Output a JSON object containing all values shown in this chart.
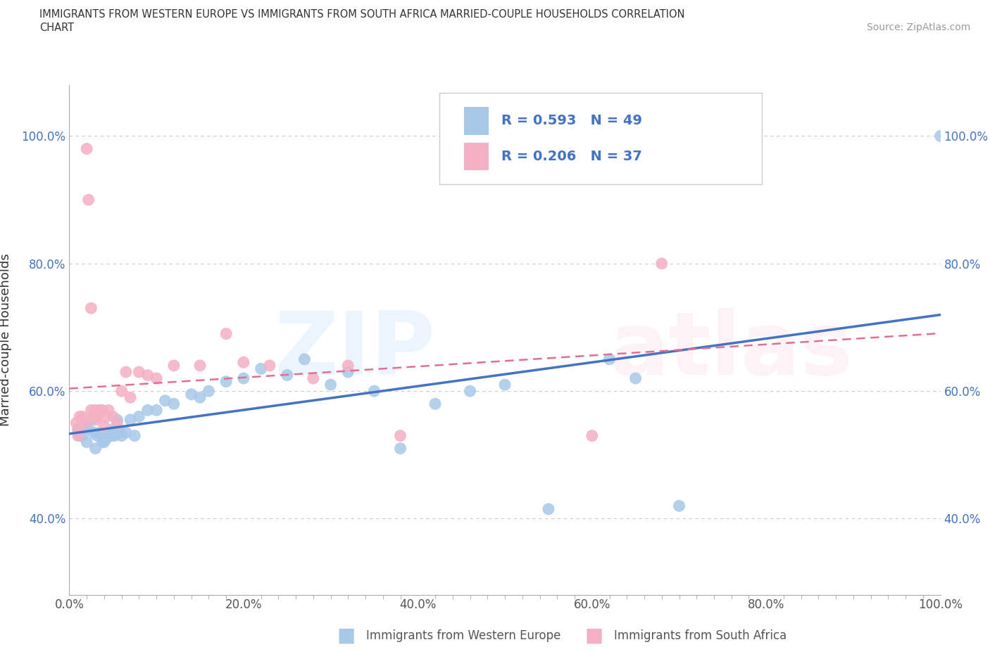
{
  "title_line1": "IMMIGRANTS FROM WESTERN EUROPE VS IMMIGRANTS FROM SOUTH AFRICA MARRIED-COUPLE HOUSEHOLDS CORRELATION",
  "title_line2": "CHART",
  "source_text": "Source: ZipAtlas.com",
  "ylabel": "Married-couple Households",
  "xmin": 0.0,
  "xmax": 1.0,
  "ymin": 0.28,
  "ymax": 1.08,
  "xtick_labels": [
    "0.0%",
    "",
    "",
    "",
    "",
    "",
    "",
    "",
    "",
    "",
    "20.0%",
    "",
    "",
    "",
    "",
    "",
    "",
    "",
    "",
    "",
    "40.0%",
    "",
    "",
    "",
    "",
    "",
    "",
    "",
    "",
    "",
    "60.0%",
    "",
    "",
    "",
    "",
    "",
    "",
    "",
    "",
    "",
    "80.0%",
    "",
    "",
    "",
    "",
    "",
    "",
    "",
    "",
    "",
    "100.0%"
  ],
  "xtick_vals": [
    0.0,
    0.02,
    0.04,
    0.06,
    0.08,
    0.1,
    0.12,
    0.14,
    0.16,
    0.18,
    0.2,
    0.22,
    0.24,
    0.26,
    0.28,
    0.3,
    0.32,
    0.34,
    0.36,
    0.38,
    0.4,
    0.42,
    0.44,
    0.46,
    0.48,
    0.5,
    0.52,
    0.54,
    0.56,
    0.58,
    0.6,
    0.62,
    0.64,
    0.66,
    0.68,
    0.7,
    0.72,
    0.74,
    0.76,
    0.78,
    0.8,
    0.82,
    0.84,
    0.86,
    0.88,
    0.9,
    0.92,
    0.94,
    0.96,
    0.98,
    1.0
  ],
  "xtick_major_labels": [
    "0.0%",
    "20.0%",
    "40.0%",
    "60.0%",
    "80.0%",
    "100.0%"
  ],
  "xtick_major_vals": [
    0.0,
    0.2,
    0.4,
    0.6,
    0.8,
    1.0
  ],
  "ytick_labels": [
    "40.0%",
    "60.0%",
    "80.0%",
    "100.0%"
  ],
  "ytick_vals": [
    0.4,
    0.6,
    0.8,
    1.0
  ],
  "series1_color": "#a8c8e8",
  "series2_color": "#f4b0c4",
  "series1_line_color": "#4472c4",
  "series2_line_color": "#e07090",
  "legend_label1": "Immigrants from Western Europe",
  "legend_label2": "Immigrants from South Africa",
  "R1": "0.593",
  "N1": "49",
  "R2": "0.206",
  "N2": "37",
  "blue_x": [
    0.01,
    0.012,
    0.015,
    0.018,
    0.02,
    0.022,
    0.025,
    0.028,
    0.03,
    0.032,
    0.035,
    0.038,
    0.04,
    0.042,
    0.045,
    0.048,
    0.05,
    0.052,
    0.055,
    0.058,
    0.06,
    0.065,
    0.07,
    0.075,
    0.08,
    0.09,
    0.1,
    0.11,
    0.12,
    0.14,
    0.15,
    0.16,
    0.18,
    0.2,
    0.22,
    0.25,
    0.27,
    0.3,
    0.32,
    0.35,
    0.38,
    0.42,
    0.46,
    0.5,
    0.55,
    0.62,
    0.65,
    0.7,
    1.0
  ],
  "blue_y": [
    0.54,
    0.53,
    0.53,
    0.545,
    0.52,
    0.54,
    0.555,
    0.535,
    0.51,
    0.53,
    0.535,
    0.52,
    0.52,
    0.525,
    0.535,
    0.53,
    0.54,
    0.53,
    0.555,
    0.535,
    0.53,
    0.535,
    0.555,
    0.53,
    0.56,
    0.57,
    0.57,
    0.585,
    0.58,
    0.595,
    0.59,
    0.6,
    0.615,
    0.62,
    0.635,
    0.625,
    0.65,
    0.61,
    0.63,
    0.6,
    0.51,
    0.58,
    0.6,
    0.61,
    0.415,
    0.65,
    0.62,
    0.42,
    1.0
  ],
  "pink_x": [
    0.008,
    0.01,
    0.01,
    0.012,
    0.015,
    0.018,
    0.02,
    0.022,
    0.025,
    0.025,
    0.028,
    0.03,
    0.03,
    0.032,
    0.035,
    0.038,
    0.04,
    0.042,
    0.045,
    0.05,
    0.055,
    0.06,
    0.065,
    0.07,
    0.08,
    0.09,
    0.1,
    0.12,
    0.15,
    0.18,
    0.2,
    0.23,
    0.28,
    0.32,
    0.38,
    0.6,
    0.68
  ],
  "pink_y": [
    0.55,
    0.53,
    0.54,
    0.56,
    0.56,
    0.55,
    0.98,
    0.9,
    0.73,
    0.57,
    0.56,
    0.555,
    0.57,
    0.56,
    0.57,
    0.57,
    0.545,
    0.56,
    0.57,
    0.56,
    0.55,
    0.6,
    0.63,
    0.59,
    0.63,
    0.625,
    0.62,
    0.64,
    0.64,
    0.69,
    0.645,
    0.64,
    0.62,
    0.64,
    0.53,
    0.53,
    0.8
  ]
}
